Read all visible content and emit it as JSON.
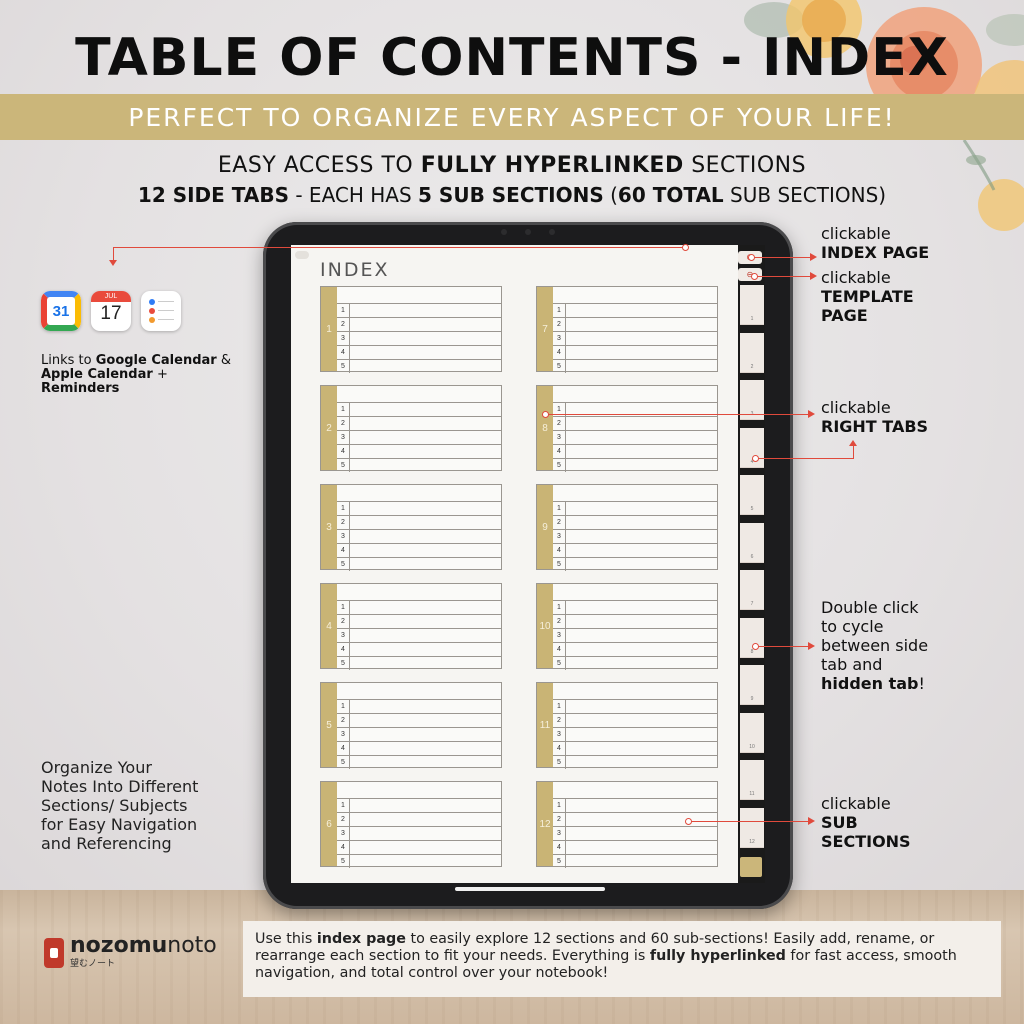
{
  "header": {
    "title": "TABLE OF CONTENTS - INDEX",
    "banner": "PERFECT TO ORGANIZE EVERY ASPECT OF YOUR LIFE!",
    "line1_pre": "EASY ACCESS TO ",
    "line1_bold": "FULLY HYPERLINKED",
    "line1_post": " SECTIONS",
    "line2_a": "12 SIDE TABS",
    "line2_b": " - EACH HAS ",
    "line2_c": "5 SUB SECTIONS",
    "line2_d": " (",
    "line2_e": "60 TOTAL",
    "line2_f": " SUB SECTIONS)"
  },
  "left": {
    "calendar_day": "31",
    "apple_month": "JUL",
    "apple_day": "17",
    "links_pre": "Links to ",
    "links_google": "Google Calendar",
    "links_amp": " &",
    "links_apple": "Apple Calendar",
    "links_plus": " +",
    "links_reminders": "Reminders",
    "organize": [
      "Organize Your",
      "Notes Into Different",
      "Sections/ Subjects",
      "for Easy Navigation",
      "and Referencing"
    ]
  },
  "annotations": {
    "index_small": "clickable",
    "index_bold": "INDEX PAGE",
    "template_small": "clickable",
    "template_bold1": "TEMPLATE",
    "template_bold2": "PAGE",
    "tabs_small": "clickable",
    "tabs_bold": "RIGHT TABS",
    "double_1": "Double click",
    "double_2": "to cycle",
    "double_3": "between side",
    "double_4": "tab and",
    "double_bold": "hidden tab",
    "double_end": "!",
    "sub_small": "clickable",
    "sub_bold1": "SUB",
    "sub_bold2": "SECTIONS"
  },
  "page": {
    "title": "INDEX",
    "sections": [
      "1",
      "2",
      "3",
      "4",
      "5",
      "6",
      "7",
      "8",
      "9",
      "10",
      "11",
      "12"
    ],
    "subs": [
      "1",
      "2",
      "3",
      "4",
      "5"
    ],
    "tabs": [
      "1",
      "2",
      "3",
      "4",
      "5",
      "6",
      "7",
      "8",
      "9",
      "10",
      "11",
      "12"
    ]
  },
  "brand": {
    "name_a": "nozomu",
    "name_b": "noto",
    "jp": "望むノート"
  },
  "description": {
    "p1": "Use this ",
    "b1": "index page",
    "p2": " to easily explore 12 sections and 60 sub-sections! Easily add, rename, or rearrange each section to fit your needs. Everything is ",
    "b2": "fully hyperlinked",
    "p3": " for fast access, smooth navigation, and total control over your notebook!"
  },
  "colors": {
    "accent_gold": "#cbb67a",
    "arrow_red": "#e04a3c"
  }
}
